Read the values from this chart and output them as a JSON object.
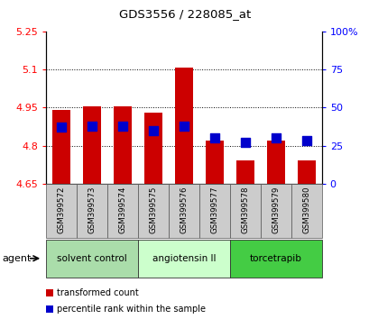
{
  "title": "GDS3556 / 228085_at",
  "samples": [
    "GSM399572",
    "GSM399573",
    "GSM399574",
    "GSM399575",
    "GSM399576",
    "GSM399577",
    "GSM399578",
    "GSM399579",
    "GSM399580"
  ],
  "bar_values": [
    4.94,
    4.955,
    4.955,
    4.93,
    5.107,
    4.82,
    4.74,
    4.82,
    4.74
  ],
  "bar_bottom": 4.65,
  "percentile_values": [
    37,
    38,
    38,
    35,
    38,
    30,
    27,
    30,
    28
  ],
  "percentile_scale_max": 100,
  "bar_color": "#cc0000",
  "percentile_color": "#0000cc",
  "ylim_left": [
    4.65,
    5.25
  ],
  "ylim_right": [
    0,
    100
  ],
  "yticks_left": [
    4.65,
    4.8,
    4.95,
    5.1,
    5.25
  ],
  "yticks_right": [
    0,
    25,
    50,
    75,
    100
  ],
  "ytick_labels_left": [
    "4.65",
    "4.8",
    "4.95",
    "5.1",
    "5.25"
  ],
  "ytick_labels_right": [
    "0",
    "25",
    "50",
    "75",
    "100%"
  ],
  "grid_yticks": [
    4.8,
    4.95,
    5.1
  ],
  "agent_groups": [
    {
      "label": "solvent control",
      "start": 0,
      "end": 3,
      "color": "#aaddaa"
    },
    {
      "label": "angiotensin II",
      "start": 3,
      "end": 6,
      "color": "#ccffcc"
    },
    {
      "label": "torcetrapib",
      "start": 6,
      "end": 9,
      "color": "#44cc44"
    }
  ],
  "agent_label": "agent",
  "legend_items": [
    {
      "label": "transformed count",
      "color": "#cc0000"
    },
    {
      "label": "percentile rank within the sample",
      "color": "#0000cc"
    }
  ],
  "bar_width": 0.6,
  "percentile_marker_size": 55,
  "xlabel_box_color": "#cccccc",
  "fig_bg": "#f0f0f0"
}
